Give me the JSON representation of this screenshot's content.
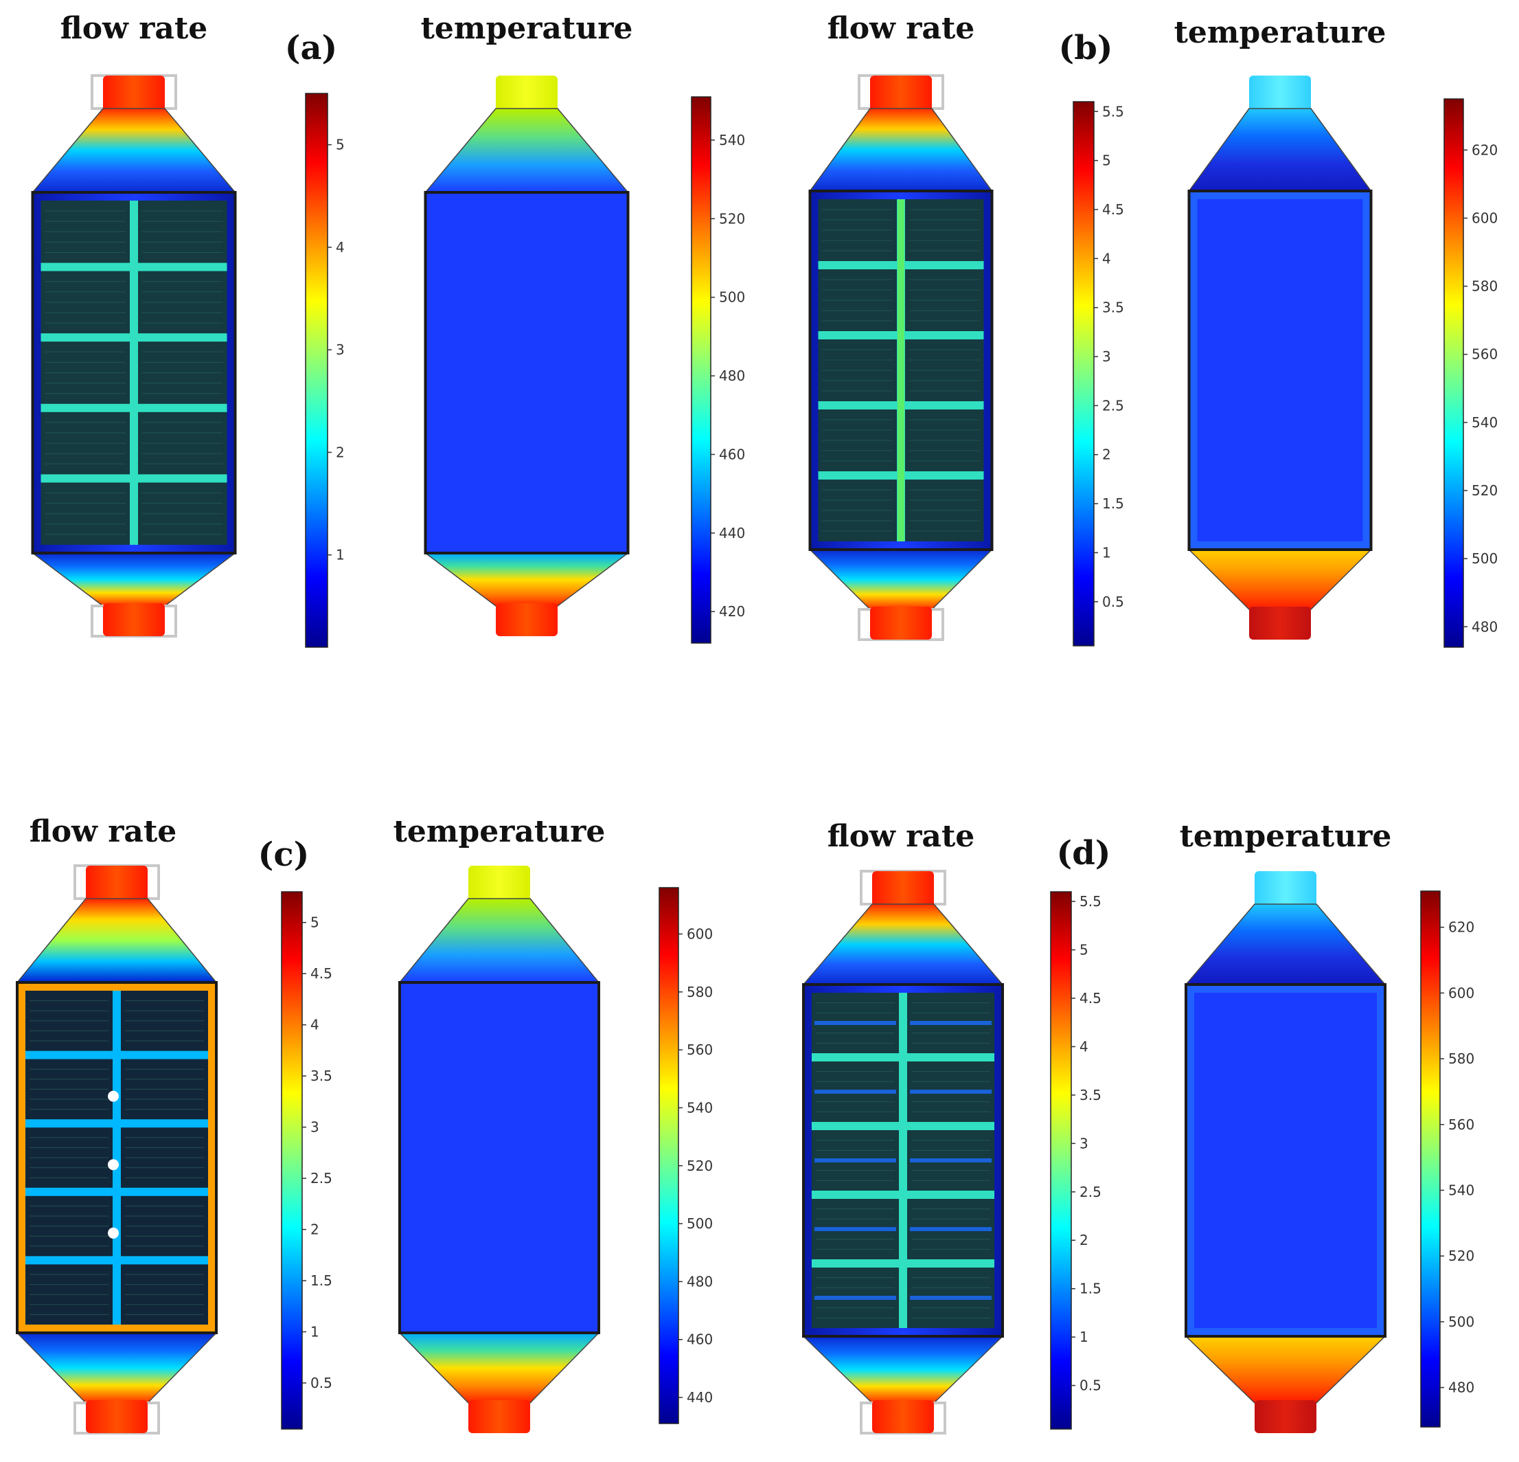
{
  "figure": {
    "panels": [
      {
        "label": "(a)",
        "flow": {
          "title": "flow rate",
          "colorbar": {
            "ticks": [
              "5",
              "4",
              "3",
              "2",
              "1"
            ],
            "values": [
              5,
              4,
              3,
              2,
              1
            ],
            "min": 0.1,
            "max": 5.5
          },
          "cells": 10,
          "cols": 2,
          "rows": 5,
          "variant": "plain"
        },
        "temp": {
          "title": "temperature",
          "colorbar": {
            "ticks": [
              "540",
              "520",
              "500",
              "480",
              "460",
              "440",
              "420"
            ],
            "values": [
              540,
              520,
              500,
              480,
              460,
              440,
              420
            ],
            "min": 412,
            "max": 551
          },
          "inlet": "yellow",
          "outlet": "red",
          "hot_bottom": false
        }
      },
      {
        "label": "(b)",
        "flow": {
          "title": "flow rate",
          "colorbar": {
            "ticks": [
              "5.5",
              "5",
              "4.5",
              "4",
              "3.5",
              "3",
              "2.5",
              "2",
              "1.5",
              "1",
              "0.5"
            ],
            "values": [
              5.5,
              5,
              4.5,
              4,
              3.5,
              3,
              2.5,
              2,
              1.5,
              1,
              0.5
            ],
            "min": 0.05,
            "max": 5.6
          },
          "cells": 10,
          "cols": 2,
          "rows": 5,
          "variant": "baffled"
        },
        "temp": {
          "title": "temperature",
          "colorbar": {
            "ticks": [
              "620",
              "600",
              "580",
              "560",
              "540",
              "520",
              "500",
              "480"
            ],
            "values": [
              620,
              600,
              580,
              560,
              540,
              520,
              500,
              480
            ],
            "min": 474,
            "max": 635
          },
          "inlet": "cyan",
          "outlet": "darkred",
          "hot_bottom": true
        }
      },
      {
        "label": "(c)",
        "flow": {
          "title": "flow rate",
          "colorbar": {
            "ticks": [
              "5",
              "4.5",
              "4",
              "3.5",
              "3",
              "2.5",
              "2",
              "1.5",
              "1",
              "0.5"
            ],
            "values": [
              5,
              4.5,
              4,
              3.5,
              3,
              2.5,
              2,
              1.5,
              1,
              0.5
            ],
            "min": 0.05,
            "max": 5.3
          },
          "cells": 10,
          "cols": 2,
          "rows": 5,
          "variant": "dotted"
        },
        "temp": {
          "title": "temperature",
          "colorbar": {
            "ticks": [
              "600",
              "580",
              "560",
              "540",
              "520",
              "500",
              "480",
              "460",
              "440"
            ],
            "values": [
              600,
              580,
              560,
              540,
              520,
              500,
              480,
              460,
              440
            ],
            "min": 431,
            "max": 616
          },
          "inlet": "yellow",
          "outlet": "red",
          "hot_bottom": false
        }
      },
      {
        "label": "(d)",
        "flow": {
          "title": "flow rate",
          "colorbar": {
            "ticks": [
              "5.5",
              "5",
              "4.5",
              "4",
              "3.5",
              "3",
              "2.5",
              "2",
              "1.5",
              "1",
              "0.5"
            ],
            "values": [
              5.5,
              5,
              4.5,
              4,
              3.5,
              3,
              2.5,
              2,
              1.5,
              1,
              0.5
            ],
            "min": 0.05,
            "max": 5.6
          },
          "cells": 10,
          "cols": 2,
          "rows": 5,
          "variant": "fine"
        },
        "temp": {
          "title": "temperature",
          "colorbar": {
            "ticks": [
              "620",
              "600",
              "580",
              "560",
              "540",
              "520",
              "500",
              "480"
            ],
            "values": [
              620,
              600,
              580,
              560,
              540,
              520,
              500,
              480
            ],
            "min": 468,
            "max": 631
          },
          "inlet": "cyan",
          "outlet": "darkred",
          "hot_bottom": true
        }
      }
    ],
    "colors": {
      "jet": [
        "#00008f",
        "#0000ff",
        "#0080ff",
        "#00ffff",
        "#80ff80",
        "#ffff00",
        "#ff8000",
        "#ff0000",
        "#800000"
      ],
      "cell_dark": "#04122e",
      "frame": "#1a1a1a",
      "nozzle_rim": "#c8c8c8"
    }
  }
}
